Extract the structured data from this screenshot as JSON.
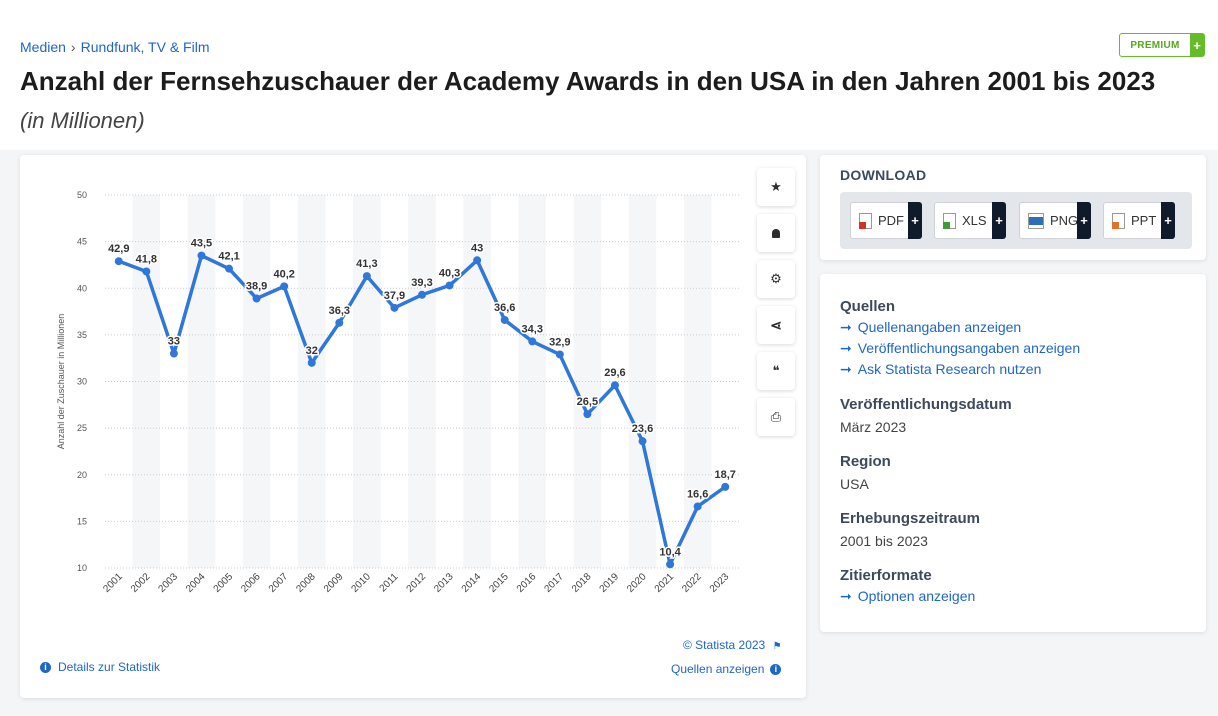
{
  "breadcrumb": [
    "Medien",
    "Rundfunk, TV & Film"
  ],
  "premium": {
    "label": "PREMIUM",
    "plus": "+"
  },
  "title": "Anzahl der Fernsehzuschauer der Academy Awards in den USA in den Jahren 2001 bis 2023",
  "subtitle": "(in Millionen)",
  "toolbar": [
    {
      "name": "favorite-button",
      "icon": "star-icon",
      "glyph": "★"
    },
    {
      "name": "alert-button",
      "icon": "bell-icon",
      "glyph": "🔔"
    },
    {
      "name": "settings-button",
      "icon": "gear-icon",
      "glyph": "⚙"
    },
    {
      "name": "share-button",
      "icon": "share-icon",
      "glyph": "⋖"
    },
    {
      "name": "cite-button",
      "icon": "quote-icon",
      "glyph": "❝"
    },
    {
      "name": "print-button",
      "icon": "printer-icon",
      "glyph": "⎙"
    }
  ],
  "footer": {
    "copyright": "© Statista 2023",
    "details": "Details zur Statistik",
    "sources": "Quellen anzeigen"
  },
  "download": {
    "title": "DOWNLOAD",
    "formats": [
      {
        "label": "PDF",
        "color": "#d0312d"
      },
      {
        "label": "XLS",
        "color": "#3f9c35"
      },
      {
        "label": "PNG",
        "color": "#2f6db5"
      },
      {
        "label": "PPT",
        "color": "#e0732a"
      }
    ]
  },
  "info": {
    "sources_heading": "Quellen",
    "sources_links": [
      "Quellenangaben anzeigen",
      "Veröffentlichungsangaben anzeigen",
      "Ask Statista Research nutzen"
    ],
    "date_heading": "Veröffentlichungsdatum",
    "date_value": "März 2023",
    "region_heading": "Region",
    "region_value": "USA",
    "period_heading": "Erhebungszeitraum",
    "period_value": "2001 bis 2023",
    "cite_heading": "Zitierformate",
    "cite_link": "Optionen anzeigen"
  },
  "chart_data": {
    "type": "line",
    "ylabel": "Anzahl der Zuschauer in Millionen",
    "ylim": [
      10,
      50
    ],
    "yticks": [
      10,
      15,
      20,
      25,
      30,
      35,
      40,
      45,
      50
    ],
    "grid": true,
    "line_color": "#2f77d9",
    "x": [
      "2001",
      "2002",
      "2003",
      "2004",
      "2005",
      "2006",
      "2007",
      "2008",
      "2009",
      "2010",
      "2011",
      "2012",
      "2013",
      "2014",
      "2015",
      "2016",
      "2017",
      "2018",
      "2019",
      "2020",
      "2021",
      "2022",
      "2023"
    ],
    "y": [
      42.9,
      41.8,
      33,
      43.5,
      42.1,
      38.9,
      40.2,
      32,
      36.3,
      41.3,
      37.9,
      39.3,
      40.3,
      43,
      36.6,
      34.3,
      32.9,
      26.5,
      29.6,
      23.6,
      10.4,
      16.6,
      18.7
    ],
    "labels": [
      "42,9",
      "41,8",
      "33",
      "43,5",
      "42,1",
      "38,9",
      "40,2",
      "32",
      "36,3",
      "41,3",
      "37,9",
      "39,3",
      "40,3",
      "43",
      "36,6",
      "34,3",
      "32,9",
      "26,5",
      "29,6",
      "23,6",
      "10,4",
      "16,6",
      "18,7"
    ]
  }
}
